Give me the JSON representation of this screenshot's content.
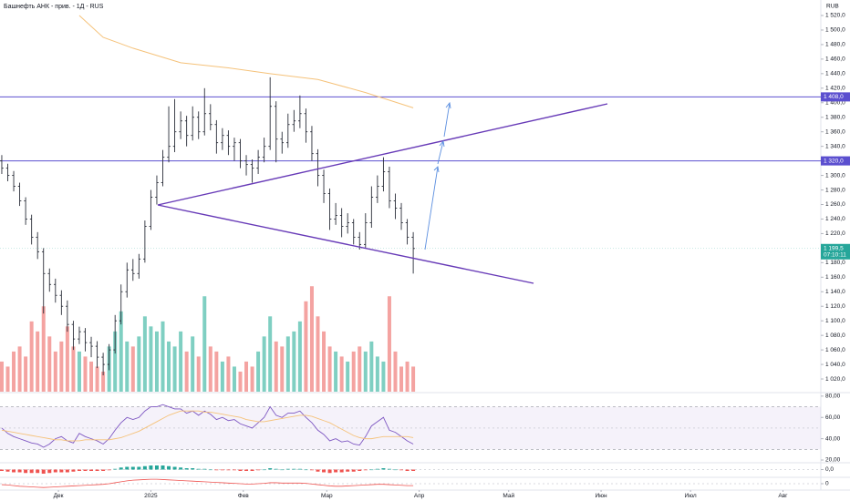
{
  "chart_data": [
    {
      "type": "candlestick",
      "title": "Башнефть АНК - прив. - 1Д - RUS",
      "currency": "RUB",
      "color": "#2a2e39",
      "x": [
        11,
        13,
        15,
        17,
        19,
        21,
        23,
        25,
        27,
        29,
        31,
        33,
        35,
        37,
        39,
        41,
        43,
        45,
        47,
        49,
        51,
        53,
        55,
        57,
        59,
        61,
        63,
        65,
        67,
        69,
        71,
        73,
        75,
        77,
        79,
        81,
        83,
        85,
        87,
        89,
        91,
        93,
        95,
        97,
        99,
        101,
        103,
        105,
        107,
        109,
        111,
        113,
        115,
        117,
        119,
        121,
        123,
        125,
        127,
        129,
        131,
        133,
        135,
        137,
        139,
        141,
        143,
        145,
        147,
        149
      ],
      "open": [
        1320,
        1310,
        1300,
        1285,
        1265,
        1240,
        1215,
        1195,
        1165,
        1150,
        1135,
        1120,
        1095,
        1075,
        1085,
        1070,
        1065,
        1050,
        1040,
        1060,
        1100,
        1140,
        1170,
        1165,
        1185,
        1230,
        1270,
        1290,
        1325,
        1340,
        1360,
        1375,
        1355,
        1380,
        1360,
        1385,
        1370,
        1345,
        1355,
        1340,
        1345,
        1320,
        1315,
        1310,
        1325,
        1340,
        1395,
        1350,
        1345,
        1370,
        1375,
        1385,
        1360,
        1330,
        1300,
        1275,
        1240,
        1245,
        1230,
        1235,
        1215,
        1205,
        1235,
        1270,
        1285,
        1305,
        1265,
        1255,
        1235,
        1215
      ],
      "high": [
        1328,
        1316,
        1306,
        1290,
        1270,
        1246,
        1222,
        1200,
        1172,
        1158,
        1142,
        1128,
        1100,
        1092,
        1090,
        1078,
        1072,
        1056,
        1068,
        1108,
        1150,
        1180,
        1185,
        1192,
        1238,
        1280,
        1300,
        1335,
        1395,
        1405,
        1388,
        1382,
        1395,
        1388,
        1420,
        1398,
        1376,
        1365,
        1362,
        1352,
        1350,
        1328,
        1322,
        1335,
        1352,
        1435,
        1402,
        1360,
        1385,
        1390,
        1410,
        1392,
        1368,
        1336,
        1308,
        1282,
        1262,
        1255,
        1248,
        1240,
        1222,
        1248,
        1285,
        1300,
        1325,
        1312,
        1275,
        1262,
        1240,
        1222
      ],
      "low": [
        1302,
        1292,
        1278,
        1258,
        1232,
        1205,
        1185,
        1110,
        1140,
        1125,
        1108,
        1085,
        1060,
        1068,
        1058,
        1050,
        1035,
        1025,
        1032,
        1055,
        1095,
        1132,
        1155,
        1158,
        1180,
        1225,
        1260,
        1285,
        1318,
        1332,
        1350,
        1340,
        1348,
        1350,
        1355,
        1362,
        1330,
        1335,
        1328,
        1320,
        1310,
        1300,
        1290,
        1302,
        1318,
        1335,
        1318,
        1330,
        1338,
        1360,
        1365,
        1345,
        1320,
        1285,
        1262,
        1225,
        1232,
        1215,
        1220,
        1205,
        1198,
        1200,
        1228,
        1262,
        1278,
        1255,
        1240,
        1225,
        1205,
        1165
      ],
      "close": [
        1310,
        1300,
        1285,
        1265,
        1240,
        1215,
        1195,
        1165,
        1150,
        1135,
        1120,
        1095,
        1075,
        1085,
        1070,
        1065,
        1050,
        1040,
        1060,
        1100,
        1140,
        1170,
        1165,
        1185,
        1230,
        1270,
        1290,
        1325,
        1340,
        1360,
        1375,
        1355,
        1380,
        1360,
        1385,
        1370,
        1345,
        1355,
        1340,
        1345,
        1320,
        1315,
        1310,
        1325,
        1340,
        1395,
        1350,
        1345,
        1370,
        1375,
        1385,
        1360,
        1330,
        1300,
        1275,
        1240,
        1245,
        1230,
        1235,
        1215,
        1205,
        1235,
        1270,
        1285,
        1305,
        1265,
        1255,
        1235,
        1215,
        1199.5
      ],
      "xlim": [
        10.4,
        285.7
      ],
      "ylim": [
        1002.5,
        1541.3
      ],
      "xticks": [
        {
          "value": 30,
          "label": "Дек"
        },
        {
          "value": 61,
          "label": "2025"
        },
        {
          "value": 92,
          "label": "Фев"
        },
        {
          "value": 120,
          "label": "Мар"
        },
        {
          "value": 151,
          "label": "Апр"
        },
        {
          "value": 181,
          "label": "Май"
        },
        {
          "value": 212,
          "label": "Июн"
        },
        {
          "value": 242,
          "label": "Июл"
        },
        {
          "value": 273,
          "label": "Авг"
        }
      ],
      "yticks": [
        {
          "value": 1020,
          "label": "1 020,0"
        },
        {
          "value": 1040,
          "label": "1 040,0"
        },
        {
          "value": 1060,
          "label": "1 060,0"
        },
        {
          "value": 1080,
          "label": "1 080,0"
        },
        {
          "value": 1100,
          "label": "1 100,0"
        },
        {
          "value": 1120,
          "label": "1 120,0"
        },
        {
          "value": 1140,
          "label": "1 140,0"
        },
        {
          "value": 1160,
          "label": "1 160,0"
        },
        {
          "value": 1180,
          "label": "1 180,0"
        },
        {
          "value": 1200,
          "label": "1 200,0"
        },
        {
          "value": 1220,
          "label": "1 220,0"
        },
        {
          "value": 1240,
          "label": "1 240,0"
        },
        {
          "value": 1260,
          "label": "1 260,0"
        },
        {
          "value": 1280,
          "label": "1 280,0"
        },
        {
          "value": 1300,
          "label": "1 300,0"
        },
        {
          "value": 1340,
          "label": "1 340,0"
        },
        {
          "value": 1360,
          "label": "1 360,0"
        },
        {
          "value": 1380,
          "label": "1 380,0"
        },
        {
          "value": 1400,
          "label": "1 400,0"
        },
        {
          "value": 1420,
          "label": "1 420,0"
        },
        {
          "value": 1440,
          "label": "1 440,0"
        },
        {
          "value": 1460,
          "label": "1 460,0"
        },
        {
          "value": 1480,
          "label": "1 480,0"
        },
        {
          "value": 1500,
          "label": "1 500,0"
        },
        {
          "value": 1520,
          "label": "1 520,0"
        }
      ],
      "overlays": [
        {
          "type": "line",
          "color": "#f5c27a",
          "x": [
            37,
            45,
            55,
            71,
            87,
            101,
            117,
            133,
            149
          ],
          "values": [
            1520,
            1490,
            1475,
            1455,
            1448,
            1440,
            1432,
            1414,
            1393
          ]
        }
      ],
      "levels": [
        {
          "value": 1408,
          "label": "1 408,0",
          "color": "#5b4fcf"
        },
        {
          "value": 1320,
          "label": "1 320,0",
          "color": "#5b4fcf"
        }
      ],
      "last_price": {
        "value": 1199.5,
        "label": "1 199,5",
        "countdown": "07:10:11",
        "color": "#26a69a"
      }
    },
    {
      "type": "volume",
      "values": [
        30,
        25,
        40,
        45,
        35,
        70,
        60,
        85,
        55,
        40,
        50,
        65,
        45,
        40,
        35,
        30,
        25,
        20,
        45,
        60,
        80,
        50,
        45,
        55,
        75,
        65,
        60,
        70,
        50,
        45,
        60,
        40,
        55,
        35,
        95,
        45,
        40,
        30,
        35,
        25,
        20,
        30,
        25,
        40,
        55,
        75,
        50,
        45,
        55,
        60,
        70,
        90,
        105,
        75,
        60,
        45,
        40,
        35,
        30,
        40,
        45,
        40,
        50,
        35,
        30,
        95,
        40,
        25,
        30,
        25
      ],
      "up_color": "#7fcfc2",
      "down_color": "#f4a3a1",
      "ylim": [
        0,
        390
      ]
    },
    {
      "type": "rsi",
      "series": [
        {
          "color": "#7e57c2",
          "values": [
            50,
            45,
            42,
            40,
            38,
            36,
            35,
            32,
            35,
            40,
            42,
            38,
            36,
            45,
            42,
            40,
            38,
            35,
            40,
            48,
            55,
            60,
            58,
            60,
            66,
            70,
            70,
            72,
            70,
            68,
            68,
            64,
            66,
            62,
            66,
            63,
            58,
            60,
            57,
            58,
            54,
            52,
            50,
            55,
            60,
            70,
            62,
            60,
            64,
            64,
            66,
            60,
            55,
            48,
            44,
            38,
            40,
            37,
            38,
            35,
            34,
            42,
            52,
            56,
            60,
            48,
            46,
            42,
            38,
            35
          ]
        },
        {
          "color": "#f5c27a",
          "values": [
            48,
            47,
            46,
            45,
            44,
            43,
            42,
            41,
            40,
            39,
            39,
            38,
            38,
            38,
            39,
            39,
            39,
            39,
            39,
            40,
            41,
            43,
            45,
            47,
            50,
            53,
            56,
            59,
            62,
            64,
            66,
            66,
            66,
            66,
            65,
            65,
            64,
            63,
            62,
            61,
            60,
            58,
            57,
            56,
            56,
            57,
            58,
            59,
            60,
            61,
            62,
            62,
            61,
            59,
            57,
            55,
            52,
            49,
            46,
            43,
            41,
            40,
            40,
            41,
            42,
            42,
            42,
            42,
            42,
            41
          ]
        }
      ],
      "band": [
        30,
        70
      ],
      "midline": 50,
      "ylim": [
        18.3,
        83.3
      ],
      "yticks": [
        {
          "value": 80,
          "label": "80,00"
        },
        {
          "value": 60,
          "label": "60,00"
        },
        {
          "value": 40,
          "label": "40,00"
        },
        {
          "value": 20,
          "label": "20,00"
        }
      ]
    },
    {
      "type": "histogram",
      "values": [
        -2,
        -3,
        -4,
        -4,
        -5,
        -5,
        -5,
        -6,
        -5,
        -4,
        -4,
        -4,
        -3,
        -2,
        -2,
        -2,
        -2,
        -2,
        -1,
        1,
        3,
        4,
        4,
        4,
        5,
        6,
        6,
        6,
        5,
        4,
        3,
        2,
        2,
        1,
        1,
        0,
        -1,
        -1,
        -1,
        -1,
        -2,
        -2,
        -2,
        -1,
        0,
        2,
        1,
        0,
        1,
        1,
        1,
        0,
        -1,
        -3,
        -4,
        -5,
        -4,
        -4,
        -3,
        -3,
        -2,
        -1,
        0,
        1,
        2,
        1,
        0,
        -1,
        -2,
        -2
      ],
      "up_color": "#26a69a",
      "down_color": "#ef5350",
      "ylim": [
        -10,
        10
      ],
      "yticks": [
        {
          "value": 0,
          "label": "0,0"
        }
      ]
    },
    {
      "type": "line",
      "series": [
        {
          "color": "#ef5350",
          "values": [
            -3,
            -4,
            -6,
            -8,
            -9,
            -10,
            -11,
            -12,
            -11,
            -10,
            -9,
            -8,
            -7,
            -6,
            -5,
            -4,
            -3,
            -2,
            0,
            3,
            6,
            9,
            11,
            12,
            13,
            14,
            14,
            13,
            12,
            11,
            10,
            9,
            8,
            7,
            6,
            5,
            4,
            3,
            2,
            1,
            0,
            -1,
            -1,
            0,
            1,
            3,
            3,
            2,
            2,
            2,
            2,
            1,
            -1,
            -3,
            -5,
            -7,
            -8,
            -8,
            -7,
            -6,
            -5,
            -4,
            -3,
            -2,
            -2,
            -3,
            -4,
            -5,
            -6,
            -6
          ]
        }
      ],
      "ylim": [
        -20,
        20
      ],
      "yticks": [
        0
      ]
    }
  ]
}
